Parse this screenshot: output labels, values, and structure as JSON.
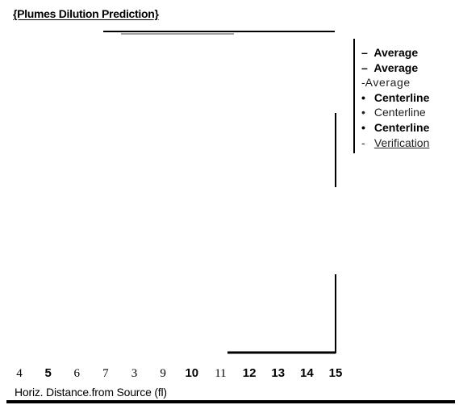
{
  "title": "{Plumes Dilution Prediction}",
  "legend": [
    {
      "symbol": "–",
      "label": "Average",
      "style": "bold"
    },
    {
      "symbol": "–",
      "label": "Average",
      "style": "bold"
    },
    {
      "symbol": "-",
      "label": "Average",
      "style": "thin"
    },
    {
      "symbol": "•",
      "label": "Centerline",
      "style": "bold"
    },
    {
      "symbol": "•",
      "label": "Centerline",
      "style": "thin"
    },
    {
      "symbol": "•",
      "label": "Centerline",
      "style": "bold"
    },
    {
      "symbol": "-",
      "label": "Verification",
      "style": "underline"
    }
  ],
  "chart_data": {
    "type": "line",
    "title": "{Plumes Dilution Prediction}",
    "xlabel": "Horiz. Distance.from Source (fl)",
    "ylabel": "",
    "x_tick_labels": [
      "4",
      "5",
      "6",
      "7",
      "3",
      "9",
      "10",
      "11",
      "12",
      "13",
      "14",
      "15"
    ],
    "series": [],
    "legend_position": "right"
  }
}
